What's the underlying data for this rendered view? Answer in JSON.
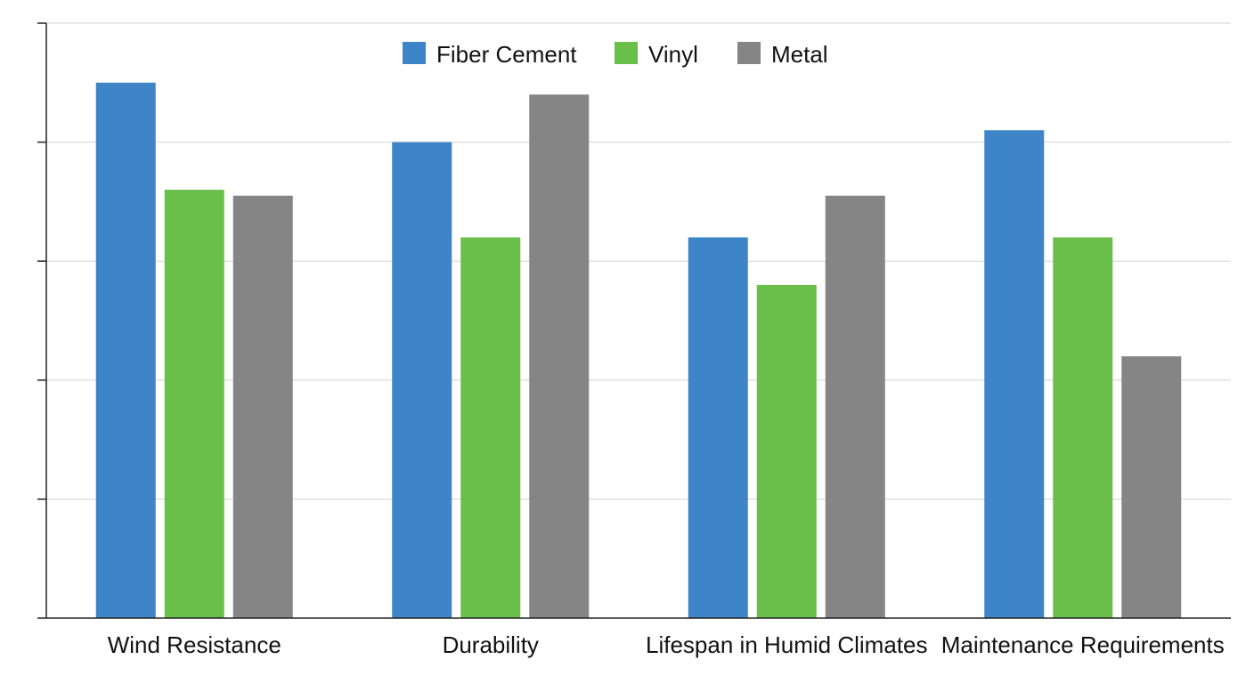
{
  "chart_data": {
    "type": "bar",
    "title": "",
    "xlabel": "",
    "ylabel": "",
    "categories": [
      "Wind Resistance",
      "Durability",
      "Lifespan in Humid Climates",
      "Maintenance Requirements"
    ],
    "series": [
      {
        "name": "Fiber Cement",
        "color": "#3d85c6",
        "values": [
          4.5,
          4.0,
          3.2,
          4.1
        ]
      },
      {
        "name": "Vinyl",
        "color": "#6abf4b",
        "values": [
          3.6,
          3.2,
          2.8,
          3.2
        ]
      },
      {
        "name": "Metal",
        "color": "#858585",
        "values": [
          3.55,
          4.4,
          3.55,
          2.2
        ]
      }
    ],
    "ylim": [
      0,
      5
    ],
    "y_tick_labels_visible": false,
    "grid": true,
    "legend_position": "top-center"
  }
}
